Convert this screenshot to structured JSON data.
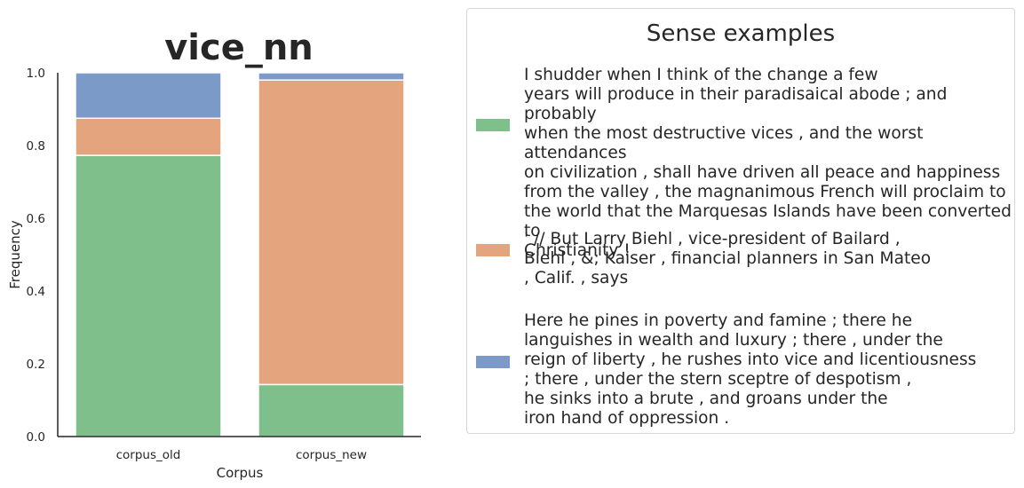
{
  "chart_data": {
    "type": "bar",
    "stacked": true,
    "title": "vice_nn",
    "xlabel": "Corpus",
    "ylabel": "Frequency",
    "ylim": [
      0,
      1.0
    ],
    "yticks": [
      "0.0",
      "0.2",
      "0.4",
      "0.6",
      "0.8",
      "1.0"
    ],
    "categories": [
      "corpus_old",
      "corpus_new"
    ],
    "series": [
      {
        "color": "#7fbf8b",
        "values": [
          0.773,
          0.143
        ]
      },
      {
        "color": "#e4a47d",
        "values": [
          0.102,
          0.837
        ]
      },
      {
        "color": "#7b9ac8",
        "values": [
          0.125,
          0.02
        ]
      }
    ],
    "legend_placement": "right",
    "grid": false
  },
  "legend": {
    "title": "Sense examples",
    "items": [
      {
        "color": "#7fbf8b",
        "text": "I shudder when I think of the change a few\nyears will produce in their paradisaical abode ; and probably\nwhen the most destructive vices , and the worst attendances\non civilization , shall have driven all peace and happiness\nfrom the valley , the magnanimous French will proclaim to\nthe world that the Marquesas Islands have been converted to\nChristianity !"
      },
      {
        "color": "#e4a47d",
        "text": "' // But Larry Biehl , vice-president of Bailard ,\nBiehl , &; Kaiser , financial planners in San Mateo\n, Calif. , says"
      },
      {
        "color": "#7b9ac8",
        "text": "Here he pines in poverty and famine ; there he\nlanguishes in wealth and luxury ; there , under the\nreign of liberty , he rushes into vice and licentiousness\n; there , under the stern sceptre of despotism ,\nhe sinks into a brute , and groans under the\niron hand of oppression ."
      }
    ]
  }
}
